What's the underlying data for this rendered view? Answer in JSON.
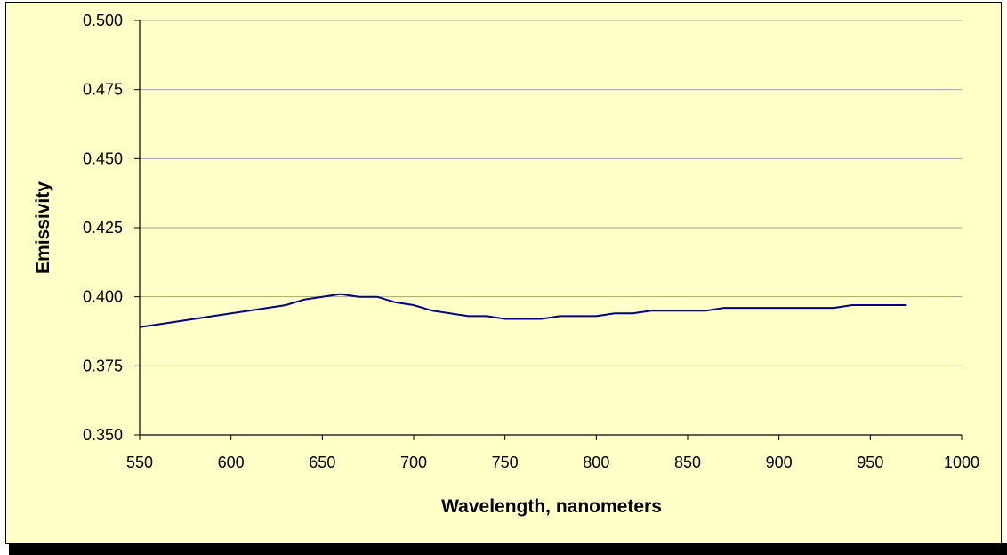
{
  "chart_data": {
    "type": "line",
    "title": "",
    "xlabel": "Wavelength, nanometers",
    "ylabel": "Emissivity",
    "xlim": [
      550,
      1000
    ],
    "ylim": [
      0.35,
      0.5
    ],
    "x_ticks": [
      "550",
      "600",
      "650",
      "700",
      "750",
      "800",
      "850",
      "900",
      "950",
      "1000"
    ],
    "y_ticks": [
      "0.350",
      "0.375",
      "0.400",
      "0.425",
      "0.450",
      "0.475",
      "0.500"
    ],
    "grid": true,
    "legend": "none",
    "series": [
      {
        "color": "#000080",
        "x": [
          550,
          560,
          570,
          580,
          590,
          600,
          610,
          620,
          630,
          640,
          650,
          660,
          670,
          680,
          690,
          700,
          710,
          720,
          730,
          740,
          750,
          760,
          770,
          780,
          790,
          800,
          810,
          820,
          830,
          840,
          850,
          860,
          870,
          880,
          890,
          900,
          910,
          920,
          930,
          940,
          950,
          960,
          970
        ],
        "values": [
          0.389,
          0.39,
          0.391,
          0.392,
          0.393,
          0.394,
          0.395,
          0.396,
          0.397,
          0.399,
          0.4,
          0.401,
          0.4,
          0.4,
          0.398,
          0.397,
          0.395,
          0.394,
          0.393,
          0.393,
          0.392,
          0.392,
          0.392,
          0.393,
          0.393,
          0.393,
          0.394,
          0.394,
          0.395,
          0.395,
          0.395,
          0.395,
          0.396,
          0.396,
          0.396,
          0.396,
          0.396,
          0.396,
          0.396,
          0.397,
          0.397,
          0.397,
          0.397
        ]
      }
    ]
  }
}
